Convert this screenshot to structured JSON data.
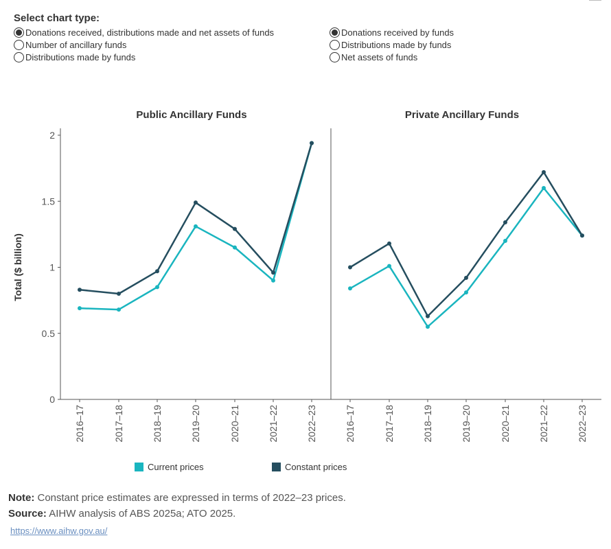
{
  "selector": {
    "title": "Select chart type:",
    "left_options": [
      {
        "label": "Donations received, distributions made and net assets of funds",
        "checked": true
      },
      {
        "label": "Number of ancillary funds",
        "checked": false
      },
      {
        "label": "Distributions made by funds",
        "checked": false
      }
    ],
    "right_options": [
      {
        "label": "Donations received by funds",
        "checked": true
      },
      {
        "label": "Distributions made by funds",
        "checked": false
      },
      {
        "label": "Net assets of funds",
        "checked": false
      }
    ]
  },
  "chart_data": {
    "type": "line",
    "ylabel": "Total ($ billion)",
    "ylim": [
      0,
      2
    ],
    "yticks": [
      0,
      0.5,
      1,
      1.5,
      2
    ],
    "ytick_labels": [
      "0",
      "0.5",
      "1",
      "1.5",
      "2"
    ],
    "categories": [
      "2016–17",
      "2017–18",
      "2018–19",
      "2019–20",
      "2020–21",
      "2021–22",
      "2022–23"
    ],
    "panels": [
      {
        "title": "Public Ancillary Funds",
        "series": [
          {
            "name": "Current prices",
            "values": [
              0.69,
              0.68,
              0.85,
              1.31,
              1.15,
              0.9,
              1.94
            ]
          },
          {
            "name": "Constant prices",
            "values": [
              0.83,
              0.8,
              0.97,
              1.49,
              1.29,
              0.96,
              1.94
            ]
          }
        ]
      },
      {
        "title": "Private Ancillary Funds",
        "series": [
          {
            "name": "Current prices",
            "values": [
              0.84,
              1.01,
              0.55,
              0.81,
              1.2,
              1.6,
              1.24
            ]
          },
          {
            "name": "Constant prices",
            "values": [
              1.0,
              1.18,
              0.63,
              0.92,
              1.34,
              1.72,
              1.24
            ]
          }
        ]
      }
    ],
    "colors": {
      "Current prices": "#1ab5bf",
      "Constant prices": "#254e5f"
    },
    "legend_position": "bottom"
  },
  "legend": {
    "current_label": "Current prices",
    "constant_label": "Constant prices"
  },
  "notes": {
    "note_label": "Note:",
    "note_text": " Constant price estimates are expressed in terms of 2022–23 prices.",
    "source_label": "Source:",
    "source_text": " AIHW analysis of ABS 2025a; ATO 2025."
  },
  "link": "https://www.aihw.gov.au/"
}
